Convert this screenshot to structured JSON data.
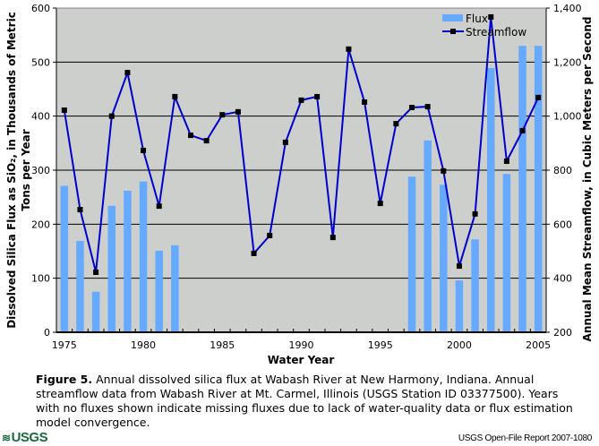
{
  "chart_data": {
    "type": "bar+line",
    "title": "",
    "xlabel": "Water Year",
    "ylabel_left": "Dissolved Silica Flux as SiO₂, in Thousands of Metric Tons per Year",
    "ylabel_left_lines": [
      "Dissolved Silica Flux as SiO₂, in Thousands of Metric",
      "Tons per Year"
    ],
    "ylabel_right": "Annual Mean Streamflow, in Cubic Meters per Second",
    "ylim_left": [
      0,
      600
    ],
    "ylim_right": [
      200,
      1400
    ],
    "yticks_left": [
      "0",
      "100",
      "200",
      "300",
      "400",
      "500",
      "600"
    ],
    "yticks_right": [
      "200",
      "400",
      "600",
      "800",
      "1,000",
      "1,200",
      "1,400"
    ],
    "xticks": [
      "1975",
      "1980",
      "1985",
      "1990",
      "1995",
      "2000",
      "2005"
    ],
    "grid": true,
    "legend_position": "top-right",
    "categories": [
      1975,
      1976,
      1977,
      1978,
      1979,
      1980,
      1981,
      1982,
      1983,
      1984,
      1985,
      1986,
      1987,
      1988,
      1989,
      1990,
      1991,
      1992,
      1993,
      1994,
      1995,
      1996,
      1997,
      1998,
      1999,
      2000,
      2001,
      2002,
      2003,
      2004,
      2005
    ],
    "series": [
      {
        "name": "Flux",
        "type": "bar",
        "axis": "left",
        "color": "#66aaff",
        "values": [
          271,
          169,
          75,
          234,
          262,
          279,
          151,
          161,
          null,
          null,
          null,
          null,
          null,
          null,
          null,
          null,
          null,
          null,
          null,
          null,
          null,
          null,
          288,
          355,
          273,
          96,
          172,
          489,
          293,
          530,
          530
        ]
      },
      {
        "name": "Streamflow",
        "type": "line",
        "axis": "right",
        "color": "#0000cc",
        "marker_color": "#000000",
        "values": [
          1022,
          654,
          422,
          1000,
          1161,
          873,
          667,
          1072,
          929,
          909,
          1005,
          1016,
          492,
          558,
          903,
          1059,
          1072,
          551,
          1248,
          1052,
          677,
          972,
          1032,
          1035,
          797,
          445,
          638,
          1367,
          833,
          946,
          1069
        ]
      }
    ],
    "colors": {
      "plot_background": "#cccfcc",
      "gridline": "#000000",
      "bar": "#66aaff",
      "line": "#0000cc"
    }
  },
  "caption": {
    "label": "Figure 5.",
    "text": " Annual dissolved silica flux at Wabash River at New Harmony, Indiana. Annual streamflow data from Wabash River at Mt. Carmel, Illinois (USGS Station ID 03377500). Years with no fluxes shown indicate missing fluxes due to lack of water-quality data or flux estimation model convergence."
  },
  "footer": {
    "logo_text": "USGS",
    "report": "USGS Open-File Report 2007-1080"
  }
}
